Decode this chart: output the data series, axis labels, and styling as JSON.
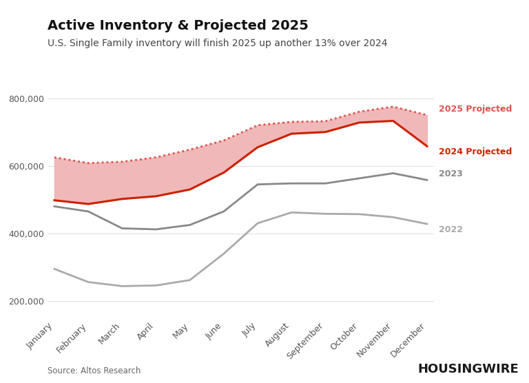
{
  "title": "Active Inventory & Projected 2025",
  "subtitle": "U.S. Single Family inventory will finish 2025 up another 13% over 2024",
  "source": "Source: Altos Research",
  "watermark": "HOUSINGWIRE",
  "months": [
    "January",
    "February",
    "March",
    "April",
    "May",
    "June",
    "July",
    "August",
    "September",
    "October",
    "November",
    "December"
  ],
  "projected_2025": [
    625000,
    608000,
    612000,
    625000,
    648000,
    675000,
    720000,
    730000,
    732000,
    760000,
    775000,
    750000
  ],
  "projected_2024": [
    498000,
    487000,
    502000,
    510000,
    530000,
    580000,
    655000,
    695000,
    700000,
    728000,
    733000,
    658000
  ],
  "data_2023": [
    480000,
    465000,
    415000,
    412000,
    425000,
    465000,
    545000,
    548000,
    548000,
    563000,
    578000,
    558000
  ],
  "data_2022": [
    295000,
    256000,
    244000,
    246000,
    262000,
    340000,
    430000,
    462000,
    458000,
    457000,
    448000,
    428000
  ],
  "color_2025": "#d9534f",
  "color_2024": "#cc2200",
  "color_2023": "#888888",
  "color_2022": "#aaaaaa",
  "fill_color": "#f0b8b8",
  "ylim": [
    150000,
    830000
  ],
  "yticks": [
    200000,
    400000,
    600000,
    800000
  ],
  "ytick_labels": [
    "200,000",
    "400,000",
    "600,000",
    "800,000"
  ],
  "background_color": "#ffffff",
  "title_fontsize": 14,
  "subtitle_fontsize": 10,
  "tick_fontsize": 9,
  "label_fontsize": 9
}
